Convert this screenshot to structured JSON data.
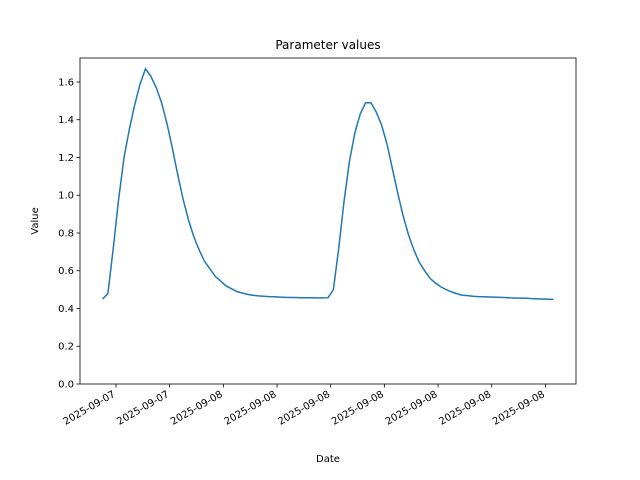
{
  "chart_data": {
    "type": "line",
    "title": "Parameter values",
    "xlabel": "Date",
    "ylabel": "Value",
    "x": [
      0,
      1,
      2,
      3,
      4,
      5,
      6,
      7,
      8,
      9,
      10,
      11,
      12,
      13,
      14,
      15,
      16,
      17,
      18,
      19,
      20,
      21,
      22,
      23,
      24,
      25,
      26,
      27,
      28,
      29,
      30,
      31,
      32,
      33,
      34,
      35,
      36,
      37,
      38,
      39,
      40,
      41,
      42,
      43,
      44,
      45,
      46,
      47,
      48,
      49,
      50,
      51,
      52,
      53,
      54,
      55,
      56,
      57,
      58,
      59,
      60,
      61,
      62,
      63,
      64,
      65,
      66,
      67,
      68,
      69,
      70,
      71,
      72,
      73,
      74,
      75,
      76,
      77,
      78,
      79,
      80,
      81,
      82,
      83,
      84
    ],
    "series": [
      {
        "color": "#1f77b4",
        "values": [
          0.45,
          0.48,
          0.72,
          0.98,
          1.2,
          1.35,
          1.48,
          1.59,
          1.67,
          1.63,
          1.57,
          1.49,
          1.38,
          1.25,
          1.11,
          0.98,
          0.87,
          0.78,
          0.71,
          0.65,
          0.61,
          0.57,
          0.545,
          0.52,
          0.505,
          0.49,
          0.482,
          0.475,
          0.47,
          0.467,
          0.465,
          0.463,
          0.462,
          0.46,
          0.459,
          0.458,
          0.458,
          0.457,
          0.457,
          0.457,
          0.456,
          0.456,
          0.457,
          0.5,
          0.72,
          0.97,
          1.18,
          1.33,
          1.43,
          1.49,
          1.49,
          1.44,
          1.37,
          1.27,
          1.14,
          1.01,
          0.89,
          0.79,
          0.71,
          0.645,
          0.6,
          0.56,
          0.535,
          0.515,
          0.5,
          0.488,
          0.478,
          0.47,
          0.468,
          0.465,
          0.463,
          0.462,
          0.461,
          0.46,
          0.459,
          0.458,
          0.456,
          0.455,
          0.455,
          0.454,
          0.452,
          0.451,
          0.45,
          0.449,
          0.448
        ]
      }
    ],
    "xlim": [
      -4.2,
      88.2
    ],
    "xticks": [
      {
        "value": 2.5,
        "label": "2025-09-07"
      },
      {
        "value": 12.5,
        "label": "2025-09-07"
      },
      {
        "value": 22.5,
        "label": "2025-09-08"
      },
      {
        "value": 32.5,
        "label": "2025-09-08"
      },
      {
        "value": 42.5,
        "label": "2025-09-08"
      },
      {
        "value": 52.5,
        "label": "2025-09-08"
      },
      {
        "value": 62.5,
        "label": "2025-09-08"
      },
      {
        "value": 72.5,
        "label": "2025-09-08"
      },
      {
        "value": 82.5,
        "label": "2025-09-08"
      }
    ],
    "ylim": [
      0,
      1.727
    ],
    "yticks": [
      {
        "value": 0,
        "label": "0.0"
      },
      0.2,
      0.4,
      0.6,
      0.8,
      {
        "value": 1,
        "label": "1.0"
      },
      1.2,
      1.4,
      1.6
    ],
    "grid": false
  }
}
